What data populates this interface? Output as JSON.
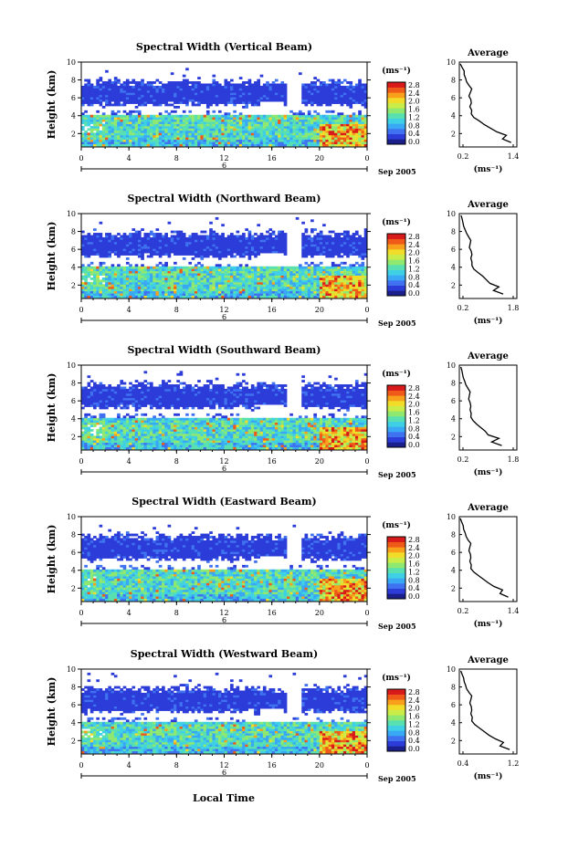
{
  "figure": {
    "date_label": "Sep 2005",
    "day_label": "6",
    "xlabel_bottom": "Local Time",
    "unit_label": "(ms⁻¹)",
    "average_title": "Average"
  },
  "colorbar": {
    "ticks": [
      "2.8",
      "2.4",
      "2.0",
      "1.6",
      "1.2",
      "0.8",
      "0.4",
      "0.0"
    ],
    "colors": [
      "#1a1f8c",
      "#2c3cd8",
      "#3f72f0",
      "#39a8f5",
      "#3fd0e6",
      "#59e0b0",
      "#8fe870",
      "#c9ec48",
      "#f1dc2a",
      "#f8a01c",
      "#f05a18",
      "#d91a1a"
    ]
  },
  "chart_data": [
    {
      "type": "heatmap",
      "title": "Spectral Width (Vertical Beam)",
      "ylabel": "Height (km)",
      "xlabel": "",
      "x_ticks": [
        "0",
        "4",
        "8",
        "12",
        "16",
        "20",
        "0"
      ],
      "y_ticks": [
        "2",
        "4",
        "6",
        "8",
        "10"
      ],
      "xlim": [
        0,
        24
      ],
      "ylim": [
        0.5,
        10
      ],
      "colorbar_ticks": [
        "2.8",
        "2.4",
        "2.0",
        "1.6",
        "1.2",
        "0.8",
        "0.4",
        "0.0"
      ],
      "profile": {
        "title": "Average",
        "xlabel": "(ms⁻¹)",
        "x_ticks": [
          "0.2",
          "1.4"
        ],
        "y_ticks": [
          "2",
          "4",
          "6",
          "8",
          "10"
        ],
        "xlim": [
          0.2,
          1.4
        ],
        "ylim": [
          0.5,
          10
        ],
        "heights": [
          1.0,
          1.4,
          1.8,
          2.2,
          2.6,
          3.0,
          3.4,
          3.8,
          4.2,
          4.6,
          5.0,
          5.4,
          5.8,
          6.2,
          6.6,
          7.0,
          7.4,
          7.8,
          8.2,
          8.6,
          9.0,
          9.4,
          9.8
        ],
        "values": [
          1.28,
          1.1,
          1.18,
          0.98,
          0.85,
          0.72,
          0.62,
          0.5,
          0.45,
          0.46,
          0.42,
          0.45,
          0.44,
          0.4,
          0.43,
          0.46,
          0.4,
          0.35,
          0.33,
          0.3,
          0.3,
          0.26,
          0.22
        ]
      }
    },
    {
      "type": "heatmap",
      "title": "Spectral Width (Northward Beam)",
      "ylabel": "Height (km)",
      "xlabel": "",
      "x_ticks": [
        "0",
        "4",
        "8",
        "12",
        "16",
        "20",
        "0"
      ],
      "y_ticks": [
        "2",
        "4",
        "6",
        "8",
        "10"
      ],
      "xlim": [
        0,
        24
      ],
      "ylim": [
        0.5,
        10
      ],
      "colorbar_ticks": [
        "2.8",
        "2.4",
        "2.0",
        "1.6",
        "1.2",
        "0.8",
        "0.4",
        "0.0"
      ],
      "profile": {
        "title": "Average",
        "xlabel": "(ms⁻¹)",
        "x_ticks": [
          "0.2",
          "1.8"
        ],
        "y_ticks": [
          "2",
          "4",
          "6",
          "8",
          "10"
        ],
        "xlim": [
          0.2,
          1.8
        ],
        "ylim": [
          0.5,
          10
        ],
        "heights": [
          1.0,
          1.4,
          1.8,
          2.2,
          2.6,
          3.0,
          3.4,
          3.8,
          4.2,
          4.6,
          5.0,
          5.4,
          5.8,
          6.2,
          6.6,
          7.0,
          7.4,
          7.8,
          8.2,
          8.6,
          9.0,
          9.4,
          9.8
        ],
        "values": [
          1.42,
          1.15,
          1.3,
          1.05,
          0.95,
          0.85,
          0.72,
          0.6,
          0.55,
          0.55,
          0.52,
          0.55,
          0.53,
          0.48,
          0.5,
          0.52,
          0.46,
          0.4,
          0.36,
          0.32,
          0.3,
          0.28,
          0.25
        ]
      }
    },
    {
      "type": "heatmap",
      "title": "Spectral Width (Southward Beam)",
      "ylabel": "Height (km)",
      "xlabel": "",
      "x_ticks": [
        "0",
        "4",
        "8",
        "12",
        "16",
        "20",
        "0"
      ],
      "y_ticks": [
        "2",
        "4",
        "6",
        "8",
        "10"
      ],
      "xlim": [
        0,
        24
      ],
      "ylim": [
        0.5,
        10
      ],
      "colorbar_ticks": [
        "2.8",
        "2.4",
        "2.0",
        "1.6",
        "1.2",
        "0.8",
        "0.4",
        "0.0"
      ],
      "profile": {
        "title": "Average",
        "xlabel": "(ms⁻¹)",
        "x_ticks": [
          "0.2",
          "1.8"
        ],
        "y_ticks": [
          "2",
          "4",
          "6",
          "8",
          "10"
        ],
        "xlim": [
          0.2,
          1.8
        ],
        "ylim": [
          0.5,
          10
        ],
        "heights": [
          1.0,
          1.4,
          1.8,
          2.2,
          2.6,
          3.0,
          3.4,
          3.8,
          4.2,
          4.6,
          5.0,
          5.4,
          5.8,
          6.2,
          6.6,
          7.0,
          7.4,
          7.8,
          8.2,
          8.6,
          9.0,
          9.4,
          9.8
        ],
        "values": [
          1.38,
          1.1,
          1.3,
          1.0,
          0.92,
          0.8,
          0.68,
          0.58,
          0.52,
          0.53,
          0.5,
          0.52,
          0.5,
          0.46,
          0.48,
          0.5,
          0.44,
          0.38,
          0.35,
          0.31,
          0.29,
          0.27,
          0.24
        ]
      }
    },
    {
      "type": "heatmap",
      "title": "Spectral Width (Eastward Beam)",
      "ylabel": "Height (km)",
      "xlabel": "",
      "x_ticks": [
        "0",
        "4",
        "8",
        "12",
        "16",
        "20",
        "0"
      ],
      "y_ticks": [
        "2",
        "4",
        "6",
        "8",
        "10"
      ],
      "xlim": [
        0,
        24
      ],
      "ylim": [
        0.5,
        10
      ],
      "colorbar_ticks": [
        "2.8",
        "2.4",
        "2.0",
        "1.6",
        "1.2",
        "0.8",
        "0.4",
        "0.0"
      ],
      "profile": {
        "title": "Average",
        "xlabel": "(ms⁻¹)",
        "x_ticks": [
          "0.2",
          "1.4"
        ],
        "y_ticks": [
          "2",
          "4",
          "6",
          "8",
          "10"
        ],
        "xlim": [
          0.2,
          1.4
        ],
        "ylim": [
          0.5,
          10
        ],
        "heights": [
          1.0,
          1.4,
          1.8,
          2.2,
          2.6,
          3.0,
          3.4,
          3.8,
          4.2,
          4.6,
          5.0,
          5.4,
          5.8,
          6.2,
          6.6,
          7.0,
          7.4,
          7.8,
          8.2,
          8.6,
          9.0,
          9.4,
          9.8
        ],
        "values": [
          1.22,
          1.05,
          1.1,
          0.92,
          0.8,
          0.7,
          0.6,
          0.5,
          0.44,
          0.45,
          0.42,
          0.44,
          0.43,
          0.4,
          0.42,
          0.44,
          0.38,
          0.34,
          0.32,
          0.29,
          0.28,
          0.25,
          0.22
        ]
      }
    },
    {
      "type": "heatmap",
      "title": "Spectral Width (Westward Beam)",
      "ylabel": "Height (km)",
      "xlabel": "Local Time",
      "x_ticks": [
        "0",
        "4",
        "8",
        "12",
        "16",
        "20",
        "0"
      ],
      "y_ticks": [
        "2",
        "4",
        "6",
        "8",
        "10"
      ],
      "xlim": [
        0,
        24
      ],
      "ylim": [
        0.5,
        10
      ],
      "colorbar_ticks": [
        "2.8",
        "2.4",
        "2.0",
        "1.6",
        "1.2",
        "0.8",
        "0.4",
        "0.0"
      ],
      "profile": {
        "title": "Average",
        "xlabel": "(ms⁻¹)",
        "x_ticks": [
          "0.4",
          "1.2"
        ],
        "y_ticks": [
          "2",
          "4",
          "6",
          "8",
          "10"
        ],
        "xlim": [
          0.2,
          1.4
        ],
        "ylim": [
          0.5,
          10
        ],
        "heights": [
          1.0,
          1.4,
          1.8,
          2.2,
          2.6,
          3.0,
          3.4,
          3.8,
          4.2,
          4.6,
          5.0,
          5.4,
          5.8,
          6.2,
          6.6,
          7.0,
          7.4,
          7.8,
          8.2,
          8.6,
          9.0,
          9.4,
          9.8
        ],
        "values": [
          1.25,
          1.05,
          1.12,
          0.95,
          0.82,
          0.72,
          0.62,
          0.52,
          0.46,
          0.47,
          0.44,
          0.46,
          0.45,
          0.42,
          0.44,
          0.46,
          0.4,
          0.35,
          0.33,
          0.3,
          0.29,
          0.26,
          0.23
        ]
      }
    }
  ]
}
